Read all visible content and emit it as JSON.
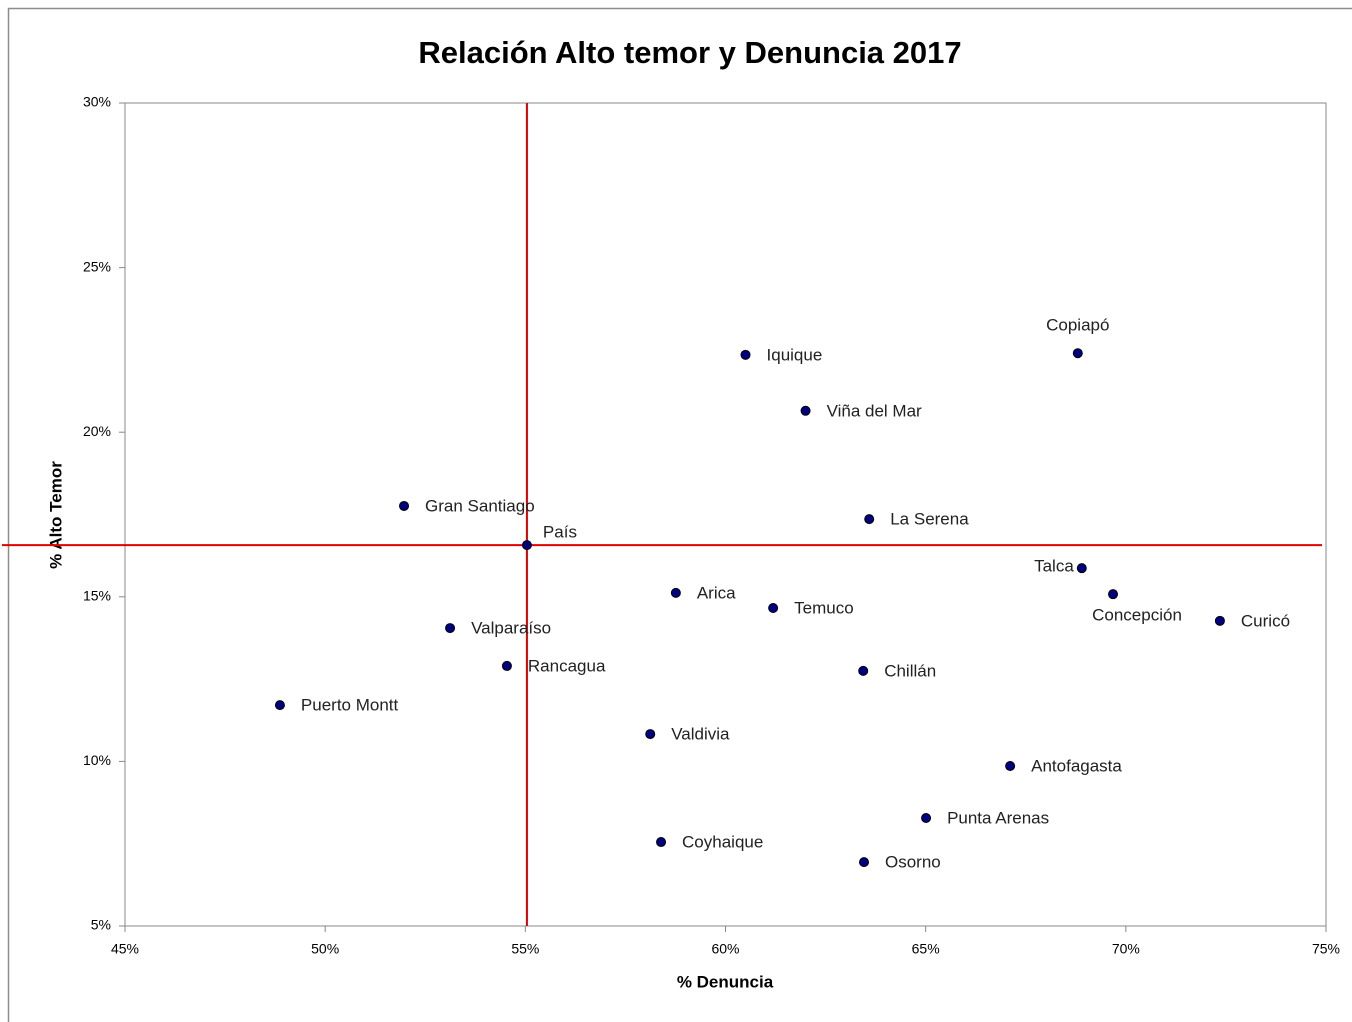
{
  "chart_data": {
    "type": "scatter",
    "title": "Relación Alto temor y Denuncia 2017",
    "x_label": "% Denuncia",
    "y_label": "% Alto Temor",
    "xlim": [
      45,
      75
    ],
    "ylim": [
      5,
      30
    ],
    "xticks": [
      {
        "value": 45,
        "label": "45%"
      },
      {
        "value": 50,
        "label": "50%"
      },
      {
        "value": 55,
        "label": "55%"
      },
      {
        "value": 60,
        "label": "60%"
      },
      {
        "value": 65,
        "label": "65%"
      },
      {
        "value": 70,
        "label": "70%"
      },
      {
        "value": 75,
        "label": "75%"
      }
    ],
    "yticks": [
      {
        "value": 5,
        "label": "5%"
      },
      {
        "value": 10,
        "label": "10%"
      },
      {
        "value": 15,
        "label": "15%"
      },
      {
        "value": 20,
        "label": "20%"
      },
      {
        "value": 25,
        "label": "25%"
      },
      {
        "value": 30,
        "label": "30%"
      }
    ],
    "grid": false,
    "reference_line_color": "#e00000",
    "series": [
      {
        "color": "#000080",
        "labels": [
          "Iquique",
          "Copiapó",
          "Viña del Mar",
          "Gran Santiago",
          "La Serena",
          "País",
          "Talca",
          "Concepción",
          "Curicó",
          "Arica",
          "Temuco",
          "Valparaíso",
          "Rancagua",
          "Chillán",
          "Puerto Montt",
          "Valdivia",
          "Antofagasta",
          "Punta Arenas",
          "Coyhaique",
          "Osorno"
        ],
        "x": [
          60.5,
          68.8,
          62.0,
          51.97,
          63.59,
          55.04,
          68.9,
          69.68,
          72.35,
          58.76,
          61.19,
          53.12,
          54.54,
          63.44,
          48.87,
          58.12,
          67.11,
          65.01,
          58.39,
          63.46
        ],
        "values": [
          22.35,
          22.4,
          20.65,
          17.76,
          17.36,
          16.57,
          15.87,
          15.08,
          14.27,
          15.12,
          14.66,
          14.05,
          12.9,
          12.75,
          11.71,
          10.83,
          9.86,
          8.28,
          7.55,
          6.94
        ]
      }
    ]
  }
}
